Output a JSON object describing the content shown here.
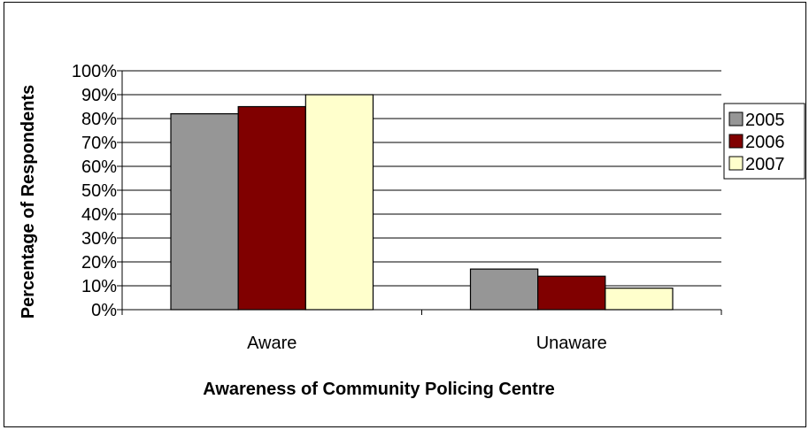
{
  "chart_data": {
    "type": "bar",
    "title": "",
    "xlabel": "Awareness of Community Policing Centre",
    "ylabel": "Percentage of Respondents",
    "categories": [
      "Aware",
      "Unaware"
    ],
    "series": [
      {
        "name": "2005",
        "values": [
          82,
          17
        ],
        "color": "#969696"
      },
      {
        "name": "2006",
        "values": [
          85,
          14
        ],
        "color": "#800000"
      },
      {
        "name": "2007",
        "values": [
          90,
          9
        ],
        "color": "#FFFFCC"
      }
    ],
    "ylim": [
      0,
      100
    ],
    "yticks": [
      "0%",
      "10%",
      "20%",
      "30%",
      "40%",
      "50%",
      "60%",
      "70%",
      "80%",
      "90%",
      "100%"
    ],
    "grid": true,
    "legend_position": "right"
  }
}
